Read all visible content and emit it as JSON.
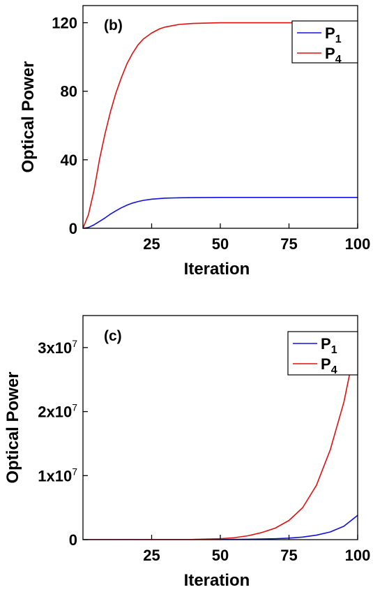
{
  "chart_data": [
    {
      "type": "line",
      "panel_label": "(b)",
      "xlabel": "Iteration",
      "ylabel": "Optical Power",
      "xlim": [
        0,
        100
      ],
      "ylim": [
        0,
        130
      ],
      "xticks": [
        25,
        50,
        75,
        100
      ],
      "xtick_labels": [
        "25",
        "50",
        "75",
        "100"
      ],
      "yticks": [
        0,
        40,
        80,
        120
      ],
      "ytick_labels": [
        "0",
        "40",
        "80",
        "120"
      ],
      "legend_position": "top-right",
      "grid": false,
      "series": [
        {
          "name": "P",
          "subscript": "1",
          "color": "#1010e0",
          "x": [
            0,
            2,
            4,
            6,
            8,
            10,
            12,
            14,
            16,
            18,
            20,
            22,
            25,
            30,
            35,
            40,
            50,
            60,
            75,
            100
          ],
          "y": [
            0,
            0.5,
            2,
            4,
            6,
            8.3,
            10.2,
            12,
            13.5,
            14.7,
            15.6,
            16.3,
            17.0,
            17.6,
            17.8,
            17.9,
            18,
            18,
            18,
            18
          ]
        },
        {
          "name": "P",
          "subscript": "4",
          "color": "#e01010",
          "x": [
            0,
            2,
            4,
            6,
            8,
            10,
            12,
            14,
            16,
            18,
            20,
            22,
            25,
            28,
            30,
            35,
            40,
            50,
            60,
            75,
            100
          ],
          "y": [
            0,
            8,
            22,
            40,
            55,
            68,
            79,
            88,
            96,
            102,
            107,
            110.5,
            114,
            116.5,
            117.5,
            119,
            119.6,
            120,
            120,
            120,
            120
          ]
        }
      ]
    },
    {
      "type": "line",
      "panel_label": "(c)",
      "xlabel": "Iteration",
      "ylabel": "Optical Power",
      "xlim": [
        0,
        100
      ],
      "ylim": [
        0,
        35000000
      ],
      "xticks": [
        25,
        50,
        75,
        100
      ],
      "xtick_labels": [
        "25",
        "50",
        "75",
        "100"
      ],
      "yticks": [
        0,
        10000000,
        20000000,
        30000000
      ],
      "ytick_labels": [
        {
          "mantissa": "0",
          "exponent": ""
        },
        {
          "mantissa": "1x10",
          "exponent": "7"
        },
        {
          "mantissa": "2x10",
          "exponent": "7"
        },
        {
          "mantissa": "3x10",
          "exponent": "7"
        }
      ],
      "legend_position": "top-right",
      "grid": false,
      "series": [
        {
          "name": "P",
          "subscript": "1",
          "color": "#1010e0",
          "x": [
            0,
            50,
            60,
            70,
            75,
            80,
            85,
            90,
            95,
            100
          ],
          "y": [
            0,
            20000,
            60000,
            150000,
            240000,
            400000,
            700000,
            1200000,
            2100000,
            3800000
          ]
        },
        {
          "name": "P",
          "subscript": "4",
          "color": "#e01010",
          "x": [
            0,
            40,
            50,
            55,
            60,
            65,
            70,
            75,
            80,
            85,
            90,
            95,
            100
          ],
          "y": [
            0,
            30000,
            150000,
            300000,
            600000,
            1100000,
            1800000,
            3000000,
            5000000,
            8500000,
            14000000,
            21500000,
            32000000
          ]
        }
      ]
    }
  ]
}
